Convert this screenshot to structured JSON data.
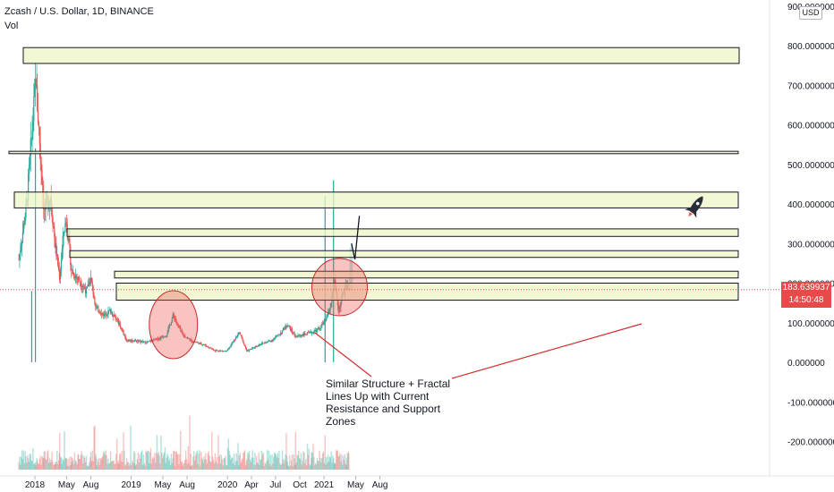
{
  "header": {
    "title": "Zcash / U.S. Dollar, 1D, BINANCE",
    "volume_label": "Vol"
  },
  "currency_button": "USD",
  "annotation": "Similar Structure + Fractal Lines Up with Current Resistance and Support Zones",
  "last_price": {
    "value": "183.639937",
    "countdown": "14:50:48"
  },
  "colors": {
    "up": "#26a69a",
    "down": "#ef5350",
    "zone_fill": "#eef5c6",
    "zone_stroke": "#131722",
    "price_tag": "#e84a4a",
    "annotation_line": "#d32f2f"
  },
  "chart_data": {
    "type": "candlestick",
    "y_axis_unit": "USD",
    "ylim": [
      -240,
      900
    ],
    "y_ticks": [
      900,
      800,
      700,
      600,
      500,
      400,
      300,
      200,
      100,
      0,
      -100,
      -200
    ],
    "y_tick_labels": [
      "900.000000",
      "800.000000",
      "700.000000",
      "600.000000",
      "500.000000",
      "400.000000",
      "300.000000",
      "200.000000",
      "100.000000",
      "0.000000",
      "-100.000000",
      "-200.000000"
    ],
    "x_tick_labels": [
      "2018",
      "May",
      "Aug",
      "2019",
      "May",
      "Aug",
      "2020",
      "Apr",
      "Jul",
      "Oct",
      "2021",
      "May",
      "Aug"
    ],
    "x_ticks": [
      "2018-01-01",
      "2018-05-01",
      "2018-08-01",
      "2019-01-01",
      "2019-05-01",
      "2019-08-01",
      "2020-01-01",
      "2020-04-01",
      "2020-07-01",
      "2020-10-01",
      "2021-01-01",
      "2021-05-01",
      "2021-08-01"
    ],
    "approx_close_path": [
      [
        "2017-11-01",
        260
      ],
      [
        "2017-12-01",
        400
      ],
      [
        "2018-01-05",
        720
      ],
      [
        "2018-01-10",
        650
      ],
      [
        "2018-02-05",
        380
      ],
      [
        "2018-03-01",
        420
      ],
      [
        "2018-03-20",
        290
      ],
      [
        "2018-04-05",
        215
      ],
      [
        "2018-04-20",
        330
      ],
      [
        "2018-05-01",
        360
      ],
      [
        "2018-05-20",
        230
      ],
      [
        "2018-06-15",
        210
      ],
      [
        "2018-07-15",
        180
      ],
      [
        "2018-08-01",
        210
      ],
      [
        "2018-08-20",
        140
      ],
      [
        "2018-09-15",
        120
      ],
      [
        "2018-10-15",
        130
      ],
      [
        "2018-11-15",
        100
      ],
      [
        "2018-12-15",
        55
      ],
      [
        "2019-01-15",
        55
      ],
      [
        "2019-03-01",
        50
      ],
      [
        "2019-04-15",
        60
      ],
      [
        "2019-05-15",
        70
      ],
      [
        "2019-06-10",
        120
      ],
      [
        "2019-06-25",
        95
      ],
      [
        "2019-07-15",
        70
      ],
      [
        "2019-08-15",
        55
      ],
      [
        "2019-10-01",
        45
      ],
      [
        "2019-11-15",
        30
      ],
      [
        "2019-12-30",
        28
      ],
      [
        "2020-02-15",
        75
      ],
      [
        "2020-03-15",
        28
      ],
      [
        "2020-05-01",
        45
      ],
      [
        "2020-06-15",
        55
      ],
      [
        "2020-07-15",
        70
      ],
      [
        "2020-08-15",
        95
      ],
      [
        "2020-09-15",
        65
      ],
      [
        "2020-10-15",
        70
      ],
      [
        "2020-11-15",
        75
      ],
      [
        "2020-12-15",
        85
      ],
      [
        "2021-01-10",
        110
      ],
      [
        "2021-01-25",
        140
      ],
      [
        "2021-02-10",
        200
      ],
      [
        "2021-02-25",
        130
      ],
      [
        "2021-03-15",
        175
      ],
      [
        "2021-03-28",
        190
      ],
      [
        "2021-04-05",
        183.64
      ]
    ],
    "projected_path": [
      [
        "2021-04-15",
        300
      ],
      [
        "2021-04-28",
        260
      ],
      [
        "2021-05-15",
        370
      ]
    ],
    "zones": [
      {
        "low": 755,
        "high": 795
      },
      {
        "low": 527,
        "high": 533
      },
      {
        "low": 390,
        "high": 430
      },
      {
        "low": 318,
        "high": 337
      },
      {
        "low": 265,
        "high": 282
      },
      {
        "low": 213,
        "high": 230
      },
      {
        "low": 157,
        "high": 200
      }
    ],
    "circled_regions": [
      {
        "center_date": "2019-06-10",
        "center_value": 95
      },
      {
        "center_date": "2021-03-01",
        "center_value": 190
      }
    ]
  }
}
